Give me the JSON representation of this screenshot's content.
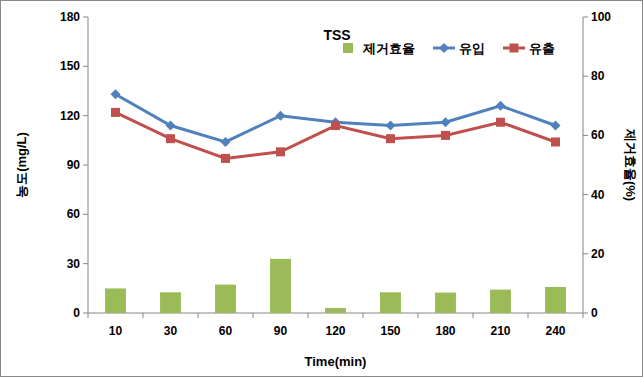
{
  "chart_data": {
    "type": "bar",
    "title": "TSS",
    "x_label": "Time(min)",
    "y_label": "농도(mg/L)",
    "y2_label": "제거효율(%)",
    "categories": [
      "10",
      "30",
      "60",
      "90",
      "120",
      "150",
      "180",
      "210",
      "240"
    ],
    "series": [
      {
        "name": "제거효율",
        "type": "bar",
        "axis": "y2",
        "color": "#9bbb59",
        "values": [
          8.3,
          7.0,
          9.6,
          18.3,
          1.7,
          7.0,
          6.9,
          7.9,
          8.8
        ]
      },
      {
        "name": "유입",
        "type": "line",
        "color": "#4f81bd",
        "marker": "diamond",
        "values": [
          133,
          114,
          104,
          120,
          116,
          114,
          116,
          126,
          114
        ]
      },
      {
        "name": "유출",
        "type": "line",
        "color": "#c0504d",
        "marker": "square",
        "values": [
          122,
          106,
          94,
          98,
          114,
          106,
          108,
          116,
          104
        ]
      }
    ],
    "ylim": [
      0,
      180
    ],
    "yticks": [
      0,
      30,
      60,
      90,
      120,
      150,
      180
    ],
    "y2lim": [
      0,
      100
    ],
    "y2ticks": [
      0,
      20,
      40,
      60,
      80,
      100
    ],
    "grid": false,
    "legend": "upper right"
  }
}
